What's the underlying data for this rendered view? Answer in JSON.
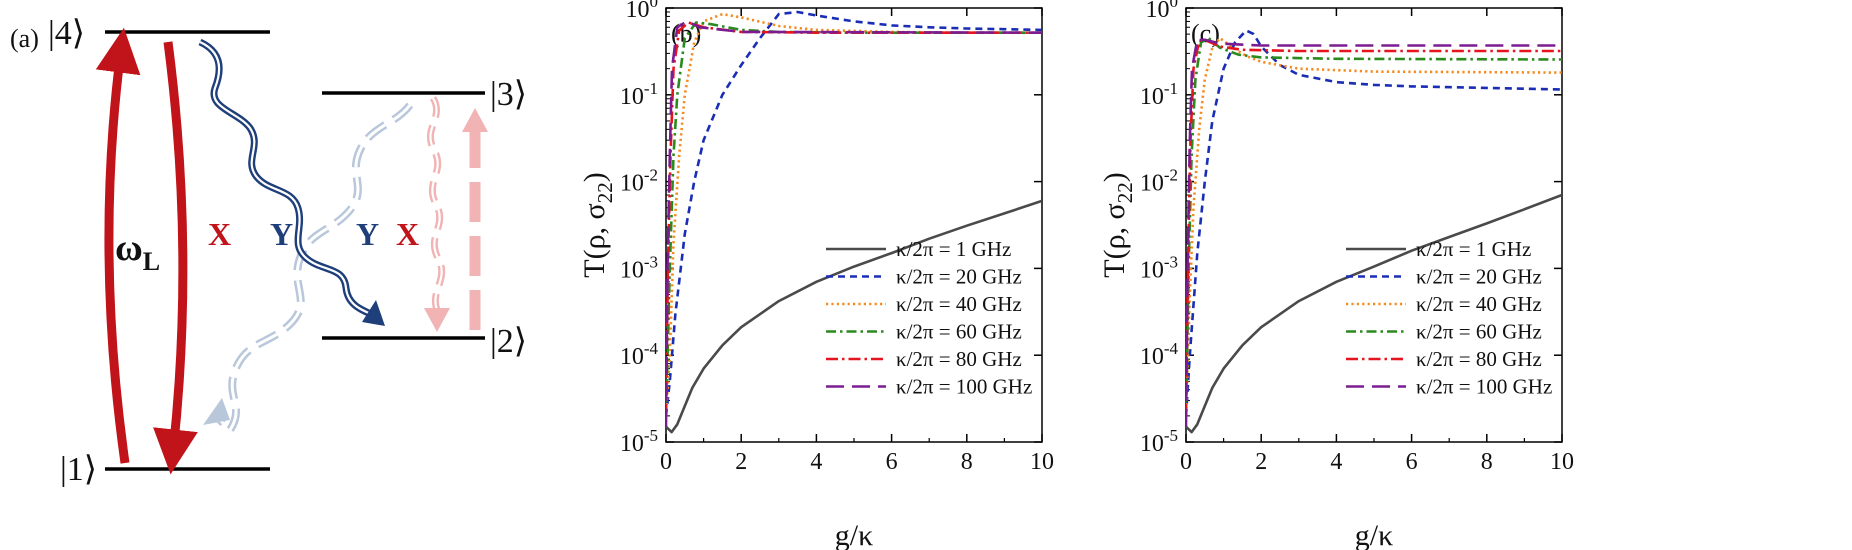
{
  "diagram": {
    "panel_label": "(a)",
    "levels": [
      {
        "state": "|4⟩"
      },
      {
        "state": "|3⟩"
      },
      {
        "state": "|2⟩"
      },
      {
        "state": "|1⟩"
      }
    ],
    "laser_label_main": "ω",
    "laser_label_sub": "L",
    "transition_labels": [
      "X",
      "Y",
      "Y",
      "X"
    ],
    "colors": {
      "laser": "#c0141a",
      "y_polarization": "#1f3f7a",
      "y_faded": "#b9c7da",
      "x_faded": "#f1b3b3",
      "level_line": "#000000"
    }
  },
  "chart_data": [
    {
      "panel_label": "(b)",
      "type": "line",
      "yscale": "log",
      "xlabel": "g/κ",
      "ylabel_main": "T(ρ, σ",
      "ylabel_sub": "22",
      "ylabel_tail": ")",
      "xlim": [
        0,
        10
      ],
      "ylim_exponents": [
        -5,
        0
      ],
      "xticks": [
        "0",
        "2",
        "4",
        "6",
        "8",
        "10"
      ],
      "yticks": [
        {
          "base": "10",
          "exp": "-5"
        },
        {
          "base": "10",
          "exp": "-4"
        },
        {
          "base": "10",
          "exp": "-3"
        },
        {
          "base": "10",
          "exp": "-2"
        },
        {
          "base": "10",
          "exp": "-1"
        },
        {
          "base": "10",
          "exp": "0"
        }
      ],
      "legend_position": "lower-right",
      "series": [
        {
          "name": "κ/2π = 1 GHz",
          "color": "#4a4a4a",
          "dash": "solid",
          "points": [
            [
              0,
              1.5e-05
            ],
            [
              0.15,
              1.3e-05
            ],
            [
              0.3,
              1.6e-05
            ],
            [
              0.5,
              2.6e-05
            ],
            [
              0.7,
              4.2e-05
            ],
            [
              1,
              7e-05
            ],
            [
              1.5,
              0.00013
            ],
            [
              2,
              0.00021
            ],
            [
              3,
              0.00042
            ],
            [
              4,
              0.0007
            ],
            [
              5,
              0.00105
            ],
            [
              6,
              0.0015
            ],
            [
              7,
              0.0022
            ],
            [
              8,
              0.0031
            ],
            [
              9,
              0.0043
            ],
            [
              10,
              0.006
            ]
          ]
        },
        {
          "name": "κ/2π = 20 GHz",
          "color": "#1a2db5",
          "dash": "dash",
          "points": [
            [
              0,
              2e-05
            ],
            [
              0.1,
              5e-05
            ],
            [
              0.25,
              0.0003
            ],
            [
              0.5,
              0.0025
            ],
            [
              0.75,
              0.01
            ],
            [
              1,
              0.03
            ],
            [
              1.5,
              0.1
            ],
            [
              2,
              0.22
            ],
            [
              2.5,
              0.45
            ],
            [
              3,
              0.85
            ],
            [
              3.5,
              0.9
            ],
            [
              4,
              0.82
            ],
            [
              5,
              0.7
            ],
            [
              6,
              0.63
            ],
            [
              7,
              0.6
            ],
            [
              8,
              0.58
            ],
            [
              9,
              0.57
            ],
            [
              10,
              0.56
            ]
          ]
        },
        {
          "name": "κ/2π = 40 GHz",
          "color": "#f58a1f",
          "dash": "dot",
          "points": [
            [
              0,
              2e-05
            ],
            [
              0.1,
              0.0001
            ],
            [
              0.2,
              0.002
            ],
            [
              0.35,
              0.02
            ],
            [
              0.5,
              0.1
            ],
            [
              0.75,
              0.4
            ],
            [
              1,
              0.7
            ],
            [
              1.5,
              0.85
            ],
            [
              2,
              0.78
            ],
            [
              3,
              0.62
            ],
            [
              4,
              0.56
            ],
            [
              6,
              0.53
            ],
            [
              8,
              0.52
            ],
            [
              10,
              0.52
            ]
          ]
        },
        {
          "name": "κ/2π = 60 GHz",
          "color": "#2a8a1e",
          "dash": "dashdot",
          "points": [
            [
              0,
              2e-05
            ],
            [
              0.1,
              0.001
            ],
            [
              0.2,
              0.02
            ],
            [
              0.3,
              0.1
            ],
            [
              0.5,
              0.45
            ],
            [
              0.8,
              0.68
            ],
            [
              1.2,
              0.65
            ],
            [
              2,
              0.56
            ],
            [
              3,
              0.53
            ],
            [
              5,
              0.52
            ],
            [
              10,
              0.52
            ]
          ]
        },
        {
          "name": "κ/2π = 80 GHz",
          "color": "#e6141e",
          "dash": "dashdotlong",
          "points": [
            [
              0,
              2e-05
            ],
            [
              0.05,
              0.001
            ],
            [
              0.12,
              0.02
            ],
            [
              0.2,
              0.2
            ],
            [
              0.35,
              0.55
            ],
            [
              0.6,
              0.68
            ],
            [
              1,
              0.6
            ],
            [
              2,
              0.53
            ],
            [
              4,
              0.52
            ],
            [
              10,
              0.52
            ]
          ]
        },
        {
          "name": "κ/2π = 100 GHz",
          "color": "#7b1c91",
          "dash": "longdash",
          "points": [
            [
              0,
              1.5e-05
            ],
            [
              0.04,
              0.001
            ],
            [
              0.1,
              0.02
            ],
            [
              0.16,
              0.2
            ],
            [
              0.3,
              0.6
            ],
            [
              0.55,
              0.7
            ],
            [
              0.9,
              0.6
            ],
            [
              2,
              0.53
            ],
            [
              10,
              0.52
            ]
          ]
        }
      ]
    },
    {
      "panel_label": "(c)",
      "type": "line",
      "yscale": "log",
      "xlabel": "g/κ",
      "ylabel_main": "T(ρ, σ",
      "ylabel_sub": "22",
      "ylabel_tail": ")",
      "xlim": [
        0,
        10
      ],
      "ylim_exponents": [
        -5,
        0
      ],
      "xticks": [
        "0",
        "2",
        "4",
        "6",
        "8",
        "10"
      ],
      "yticks": [
        {
          "base": "10",
          "exp": "-5"
        },
        {
          "base": "10",
          "exp": "-4"
        },
        {
          "base": "10",
          "exp": "-3"
        },
        {
          "base": "10",
          "exp": "-2"
        },
        {
          "base": "10",
          "exp": "-1"
        },
        {
          "base": "10",
          "exp": "0"
        }
      ],
      "legend_position": "lower-right",
      "series": [
        {
          "name": "κ/2π = 1 GHz",
          "color": "#4a4a4a",
          "dash": "solid",
          "points": [
            [
              0,
              1.5e-05
            ],
            [
              0.15,
              1.3e-05
            ],
            [
              0.3,
              1.6e-05
            ],
            [
              0.5,
              2.6e-05
            ],
            [
              0.7,
              4.2e-05
            ],
            [
              1,
              7e-05
            ],
            [
              1.5,
              0.00013
            ],
            [
              2,
              0.00021
            ],
            [
              3,
              0.00042
            ],
            [
              4,
              0.0007
            ],
            [
              5,
              0.00105
            ],
            [
              6,
              0.0016
            ],
            [
              7,
              0.0023
            ],
            [
              8,
              0.0033
            ],
            [
              9,
              0.0048
            ],
            [
              10,
              0.007
            ]
          ]
        },
        {
          "name": "κ/2π = 20 GHz",
          "color": "#1a2db5",
          "dash": "dash",
          "points": [
            [
              0,
              2e-05
            ],
            [
              0.1,
              0.0001
            ],
            [
              0.3,
              0.0015
            ],
            [
              0.5,
              0.01
            ],
            [
              0.7,
              0.05
            ],
            [
              1,
              0.2
            ],
            [
              1.3,
              0.4
            ],
            [
              1.6,
              0.55
            ],
            [
              1.8,
              0.5
            ],
            [
              2,
              0.36
            ],
            [
              2.5,
              0.22
            ],
            [
              3,
              0.17
            ],
            [
              4,
              0.14
            ],
            [
              5,
              0.13
            ],
            [
              6,
              0.125
            ],
            [
              8,
              0.12
            ],
            [
              10,
              0.115
            ]
          ]
        },
        {
          "name": "κ/2π = 40 GHz",
          "color": "#f58a1f",
          "dash": "dot",
          "points": [
            [
              0,
              2e-05
            ],
            [
              0.1,
              0.0005
            ],
            [
              0.2,
              0.005
            ],
            [
              0.35,
              0.04
            ],
            [
              0.5,
              0.15
            ],
            [
              0.7,
              0.35
            ],
            [
              0.9,
              0.45
            ],
            [
              1.2,
              0.36
            ],
            [
              1.6,
              0.28
            ],
            [
              2,
              0.24
            ],
            [
              3,
              0.2
            ],
            [
              5,
              0.185
            ],
            [
              10,
              0.18
            ]
          ]
        },
        {
          "name": "κ/2π = 60 GHz",
          "color": "#2a8a1e",
          "dash": "dashdot",
          "points": [
            [
              0,
              2e-05
            ],
            [
              0.07,
              0.001
            ],
            [
              0.15,
              0.02
            ],
            [
              0.25,
              0.15
            ],
            [
              0.4,
              0.4
            ],
            [
              0.6,
              0.45
            ],
            [
              0.9,
              0.35
            ],
            [
              1.4,
              0.29
            ],
            [
              2,
              0.27
            ],
            [
              4,
              0.26
            ],
            [
              10,
              0.255
            ]
          ]
        },
        {
          "name": "κ/2π = 80 GHz",
          "color": "#e6141e",
          "dash": "dashdotlong",
          "points": [
            [
              0,
              2e-05
            ],
            [
              0.05,
              0.001
            ],
            [
              0.12,
              0.03
            ],
            [
              0.2,
              0.2
            ],
            [
              0.35,
              0.42
            ],
            [
              0.55,
              0.42
            ],
            [
              0.9,
              0.36
            ],
            [
              1.5,
              0.33
            ],
            [
              3,
              0.32
            ],
            [
              10,
              0.32
            ]
          ]
        },
        {
          "name": "κ/2π = 100 GHz",
          "color": "#7b1c91",
          "dash": "longdash",
          "points": [
            [
              0,
              1.5e-05
            ],
            [
              0.04,
              0.001
            ],
            [
              0.1,
              0.03
            ],
            [
              0.16,
              0.2
            ],
            [
              0.3,
              0.43
            ],
            [
              0.5,
              0.43
            ],
            [
              0.9,
              0.39
            ],
            [
              2,
              0.37
            ],
            [
              10,
              0.37
            ]
          ]
        }
      ]
    }
  ]
}
